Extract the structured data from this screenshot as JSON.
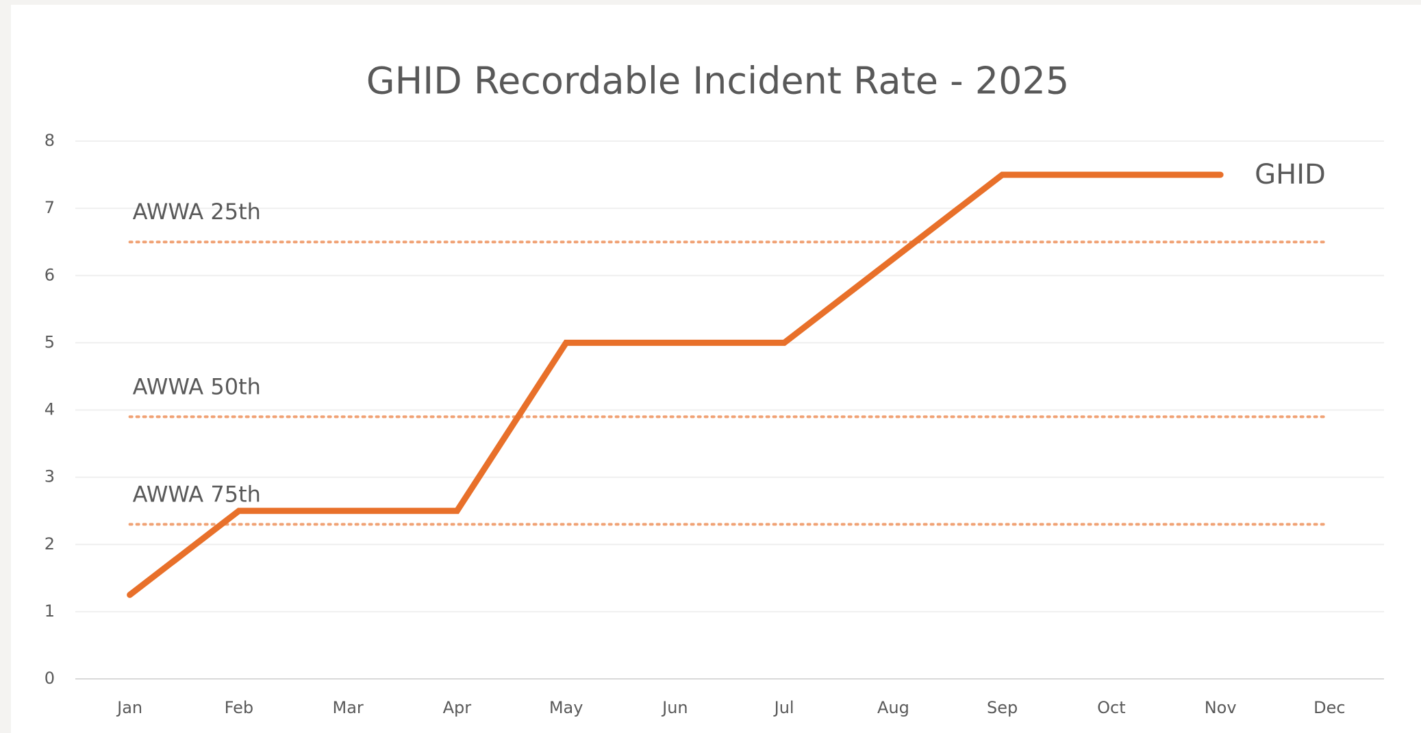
{
  "chart_data": {
    "type": "line",
    "title": "GHID Recordable Incident Rate - 2025",
    "categories": [
      "Jan",
      "Feb",
      "Mar",
      "Apr",
      "May",
      "Jun",
      "Jul",
      "Aug",
      "Sep",
      "Oct",
      "Nov",
      "Dec"
    ],
    "series": [
      {
        "name": "GHID",
        "color": "#e8702a",
        "values": [
          1.25,
          2.5,
          2.5,
          2.5,
          5,
          5,
          5,
          6.25,
          7.5,
          7.5,
          7.5,
          null
        ]
      }
    ],
    "reference_lines": [
      {
        "name": "AWWA 25th",
        "value": 6.5,
        "color": "#f0a275"
      },
      {
        "name": "AWWA 50th",
        "value": 3.9,
        "color": "#f0a275"
      },
      {
        "name": "AWWA 75th",
        "value": 2.3,
        "color": "#f0a275"
      }
    ],
    "ylim": [
      0,
      8
    ],
    "yticks": [
      0,
      1,
      2,
      3,
      4,
      5,
      6,
      7,
      8
    ],
    "grid": true
  }
}
